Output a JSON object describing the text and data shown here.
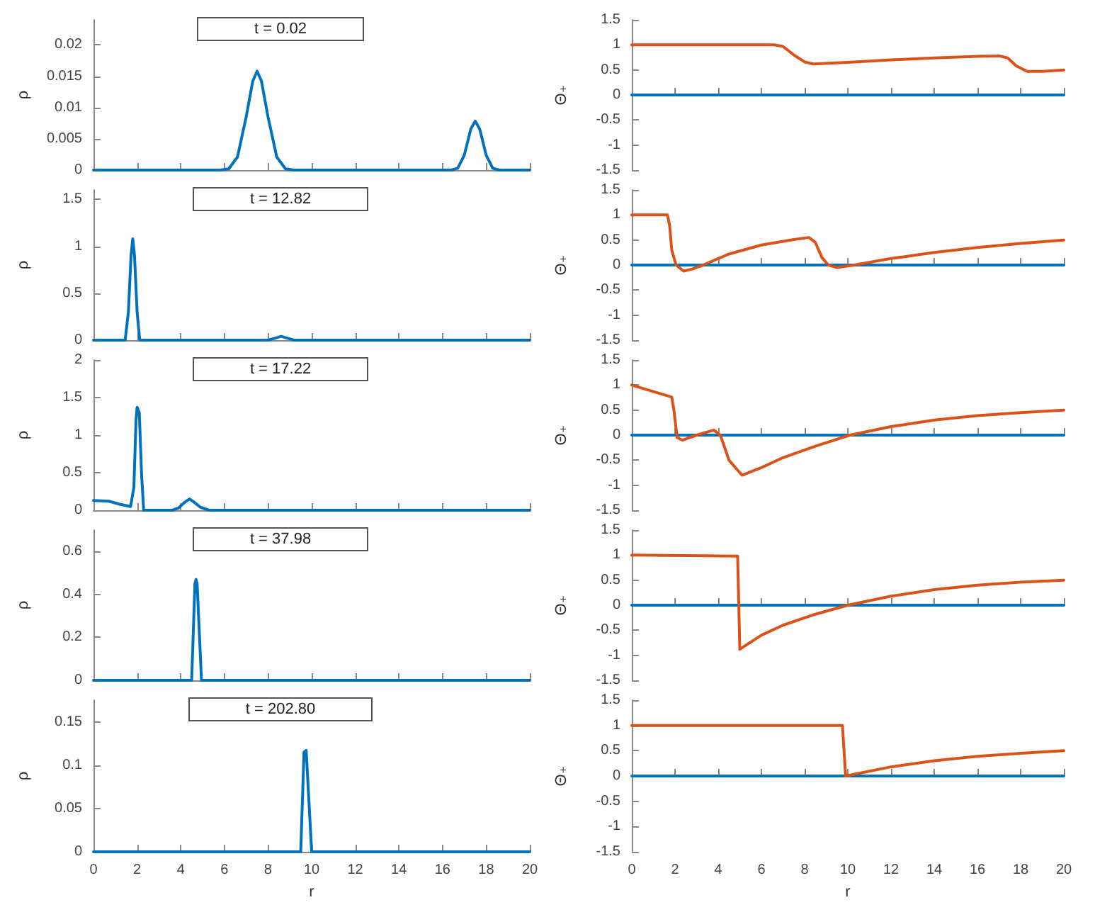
{
  "chart_data": [
    {
      "type": "line",
      "title": "t = 0.02",
      "ylabel": "ρ",
      "marker": "none",
      "tick_labels": "y",
      "xlim": [
        0,
        20
      ],
      "xticks": [
        0,
        2,
        4,
        6,
        8,
        10,
        12,
        14,
        16,
        18,
        20
      ],
      "ylim": [
        0,
        0.024
      ],
      "yticks": [
        0,
        0.005,
        0.01,
        0.015,
        0.02
      ],
      "series": [
        {
          "color": "#0072bd",
          "x": [
            0,
            5.8,
            6.2,
            6.6,
            7.0,
            7.3,
            7.5,
            7.7,
            8.0,
            8.4,
            8.8,
            9.2,
            16.4,
            16.7,
            17.0,
            17.3,
            17.5,
            17.7,
            18.0,
            18.3,
            18.6,
            20
          ],
          "values": [
            0,
            0,
            0.0002,
            0.0021,
            0.0085,
            0.0142,
            0.0158,
            0.0142,
            0.0085,
            0.0021,
            0.0002,
            0,
            0,
            0.0003,
            0.0024,
            0.0066,
            0.0078,
            0.0066,
            0.0024,
            0.0003,
            0,
            0
          ]
        }
      ]
    },
    {
      "type": "line",
      "ylabel": "Θ₊",
      "marker": "none",
      "tick_labels": "y",
      "xlim": [
        0,
        20
      ],
      "xticks": [
        0,
        2,
        4,
        6,
        8,
        10,
        12,
        14,
        16,
        18,
        20
      ],
      "ylim": [
        -1.5,
        1.5
      ],
      "yticks": [
        -1.5,
        -1,
        -0.5,
        0,
        0.5,
        1,
        1.5
      ],
      "series": [
        {
          "color": "#0072bd",
          "x": [
            0,
            20
          ],
          "values": [
            0,
            0
          ]
        },
        {
          "color": "#d95319",
          "x": [
            0,
            6.6,
            7.0,
            7.5,
            8.0,
            8.4,
            10,
            12,
            14,
            16,
            17.0,
            17.4,
            17.8,
            18.3,
            19,
            20
          ],
          "values": [
            1,
            1,
            0.97,
            0.8,
            0.66,
            0.62,
            0.65,
            0.7,
            0.74,
            0.77,
            0.78,
            0.74,
            0.58,
            0.47,
            0.47,
            0.5
          ]
        }
      ]
    },
    {
      "type": "line",
      "title": "t = 12.82",
      "ylabel": "ρ",
      "marker": "none",
      "tick_labels": "y",
      "xlim": [
        0,
        20
      ],
      "xticks": [
        0,
        2,
        4,
        6,
        8,
        10,
        12,
        14,
        16,
        18,
        20
      ],
      "ylim": [
        0,
        1.6
      ],
      "yticks": [
        0,
        0.5,
        1,
        1.5
      ],
      "series": [
        {
          "color": "#0072bd",
          "x": [
            0,
            1.45,
            1.6,
            1.72,
            1.8,
            1.88,
            2.0,
            2.12,
            8.0,
            8.3,
            8.6,
            8.9,
            9.2,
            20
          ],
          "values": [
            0,
            0,
            0.3,
            0.9,
            1.08,
            0.9,
            0.3,
            0,
            0,
            0.02,
            0.04,
            0.02,
            0,
            0
          ]
        }
      ]
    },
    {
      "type": "line",
      "ylabel": "Θ₊",
      "marker": "none",
      "tick_labels": "y",
      "xlim": [
        0,
        20
      ],
      "xticks": [
        0,
        2,
        4,
        6,
        8,
        10,
        12,
        14,
        16,
        18,
        20
      ],
      "ylim": [
        -1.5,
        1.5
      ],
      "yticks": [
        -1.5,
        -1,
        -0.5,
        0,
        0.5,
        1,
        1.5
      ],
      "series": [
        {
          "color": "#0072bd",
          "x": [
            0,
            20
          ],
          "values": [
            0,
            0
          ]
        },
        {
          "color": "#d95319",
          "x": [
            0,
            1.65,
            1.75,
            1.85,
            2.05,
            2.4,
            2.8,
            3.3,
            4.5,
            6,
            7.5,
            8.2,
            8.5,
            8.8,
            9.1,
            9.5,
            10.3,
            12,
            14,
            16,
            18,
            20
          ],
          "values": [
            1,
            1,
            0.8,
            0.3,
            0,
            -0.12,
            -0.08,
            0,
            0.22,
            0.4,
            0.51,
            0.55,
            0.45,
            0.15,
            0,
            -0.05,
            0,
            0.13,
            0.25,
            0.35,
            0.43,
            0.5
          ]
        }
      ]
    },
    {
      "type": "line",
      "title": "t = 17.22",
      "ylabel": "ρ",
      "marker": "none",
      "tick_labels": "y",
      "xlim": [
        0,
        20
      ],
      "xticks": [
        0,
        2,
        4,
        6,
        8,
        10,
        12,
        14,
        16,
        18,
        20
      ],
      "ylim": [
        0,
        2
      ],
      "yticks": [
        0,
        0.5,
        1,
        1.5,
        2
      ],
      "series": [
        {
          "color": "#0072bd",
          "x": [
            0,
            0.7,
            1.2,
            1.7,
            1.85,
            1.95,
            2.0,
            2.1,
            2.2,
            2.3,
            3.6,
            3.9,
            4.2,
            4.4,
            4.6,
            4.9,
            5.3,
            20
          ],
          "values": [
            0.13,
            0.12,
            0.08,
            0.05,
            0.3,
            1.2,
            1.37,
            1.3,
            0.5,
            0,
            0,
            0.03,
            0.11,
            0.15,
            0.11,
            0.04,
            0,
            0
          ]
        }
      ]
    },
    {
      "type": "line",
      "ylabel": "Θ₊",
      "marker": "none",
      "tick_labels": "y",
      "xlim": [
        0,
        20
      ],
      "xticks": [
        0,
        2,
        4,
        6,
        8,
        10,
        12,
        14,
        16,
        18,
        20
      ],
      "ylim": [
        -1.5,
        1.5
      ],
      "yticks": [
        -1.5,
        -1,
        -0.5,
        0,
        0.5,
        1,
        1.5
      ],
      "series": [
        {
          "color": "#0072bd",
          "x": [
            0,
            20
          ],
          "values": [
            0,
            0
          ]
        },
        {
          "color": "#d95319",
          "x": [
            0,
            1.85,
            1.95,
            2.1,
            2.35,
            3.0,
            3.8,
            4.1,
            4.5,
            5.1,
            6,
            7,
            8.5,
            10.1,
            12,
            14,
            16,
            18,
            20
          ],
          "values": [
            1,
            0.76,
            0.5,
            -0.05,
            -0.1,
            0,
            0.1,
            0,
            -0.5,
            -0.8,
            -0.65,
            -0.45,
            -0.22,
            0,
            0.17,
            0.3,
            0.39,
            0.45,
            0.5
          ]
        }
      ]
    },
    {
      "type": "line",
      "title": "t = 37.98",
      "ylabel": "ρ",
      "marker": "none",
      "tick_labels": "y",
      "xlim": [
        0,
        20
      ],
      "xticks": [
        0,
        2,
        4,
        6,
        8,
        10,
        12,
        14,
        16,
        18,
        20
      ],
      "ylim": [
        0,
        0.7
      ],
      "yticks": [
        0,
        0.2,
        0.4,
        0.6
      ],
      "series": [
        {
          "color": "#0072bd",
          "x": [
            0,
            4.5,
            4.65,
            4.7,
            4.75,
            4.95,
            20
          ],
          "values": [
            0,
            0,
            0.45,
            0.47,
            0.45,
            0,
            0
          ]
        }
      ]
    },
    {
      "type": "line",
      "ylabel": "Θ₊",
      "marker": "none",
      "tick_labels": "y",
      "xlim": [
        0,
        20
      ],
      "xticks": [
        0,
        2,
        4,
        6,
        8,
        10,
        12,
        14,
        16,
        18,
        20
      ],
      "ylim": [
        -1.5,
        1.5
      ],
      "yticks": [
        -1.5,
        -1,
        -0.5,
        0,
        0.5,
        1,
        1.5
      ],
      "series": [
        {
          "color": "#0072bd",
          "x": [
            0,
            20
          ],
          "values": [
            0,
            0
          ]
        },
        {
          "color": "#d95319",
          "x": [
            0,
            4.9,
            5.0,
            6,
            7,
            8.5,
            10,
            12,
            14,
            16,
            18,
            20
          ],
          "values": [
            1,
            0.98,
            -0.88,
            -0.6,
            -0.4,
            -0.18,
            0,
            0.18,
            0.31,
            0.4,
            0.46,
            0.5
          ]
        }
      ]
    },
    {
      "type": "line",
      "title": "t = 202.80",
      "xlabel": "r",
      "ylabel": "ρ",
      "marker": "none",
      "xlim": [
        0,
        20
      ],
      "xticks": [
        0,
        2,
        4,
        6,
        8,
        10,
        12,
        14,
        16,
        18,
        20
      ],
      "ylim": [
        0,
        0.175
      ],
      "yticks": [
        0,
        0.05,
        0.1,
        0.15
      ],
      "series": [
        {
          "color": "#0072bd",
          "x": [
            0,
            9.5,
            9.65,
            9.75,
            10.0,
            20
          ],
          "values": [
            0,
            0,
            0.115,
            0.117,
            0,
            0
          ]
        }
      ]
    },
    {
      "type": "line",
      "xlabel": "r",
      "ylabel": "Θ₊",
      "marker": "none",
      "xlim": [
        0,
        20
      ],
      "xticks": [
        0,
        2,
        4,
        6,
        8,
        10,
        12,
        14,
        16,
        18,
        20
      ],
      "ylim": [
        -1.5,
        1.5
      ],
      "yticks": [
        -1.5,
        -1,
        -0.5,
        0,
        0.5,
        1,
        1.5
      ],
      "series": [
        {
          "color": "#0072bd",
          "x": [
            0,
            20
          ],
          "values": [
            0,
            0
          ]
        },
        {
          "color": "#d95319",
          "x": [
            0,
            9.75,
            9.9,
            12,
            14,
            16,
            18,
            20
          ],
          "values": [
            1,
            1,
            0,
            0.18,
            0.3,
            0.39,
            0.45,
            0.5
          ]
        }
      ]
    }
  ]
}
